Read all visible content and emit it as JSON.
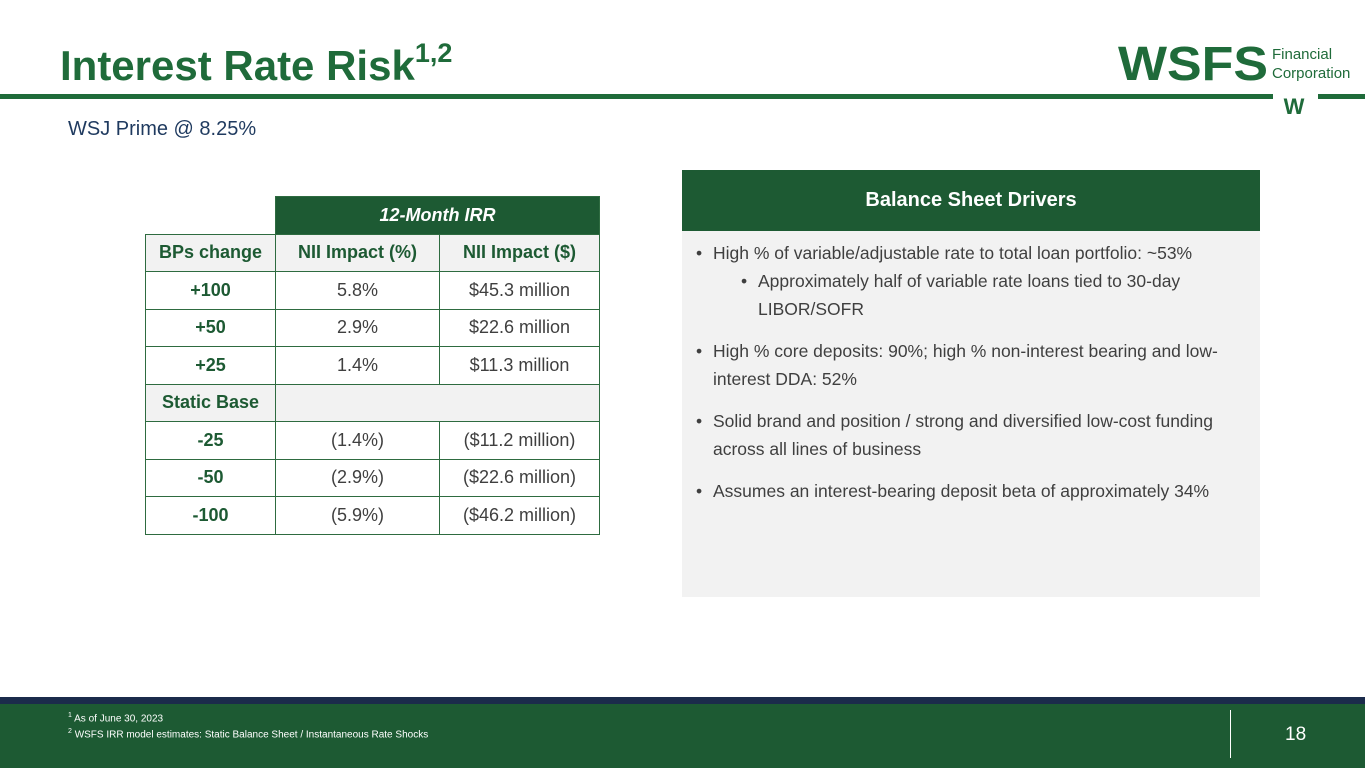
{
  "header": {
    "title": "Interest Rate Risk",
    "title_sup": "1,2",
    "subtitle": "WSJ Prime @ 8.25%"
  },
  "logo": {
    "mark": "WSFS",
    "line1": "Financial",
    "line2": "Corporation",
    "emblem": "W"
  },
  "table": {
    "group_header": "12-Month IRR",
    "columns": [
      "BPs change",
      "NII Impact (%)",
      "NII Impact ($)"
    ],
    "rows": [
      [
        "+100",
        "5.8%",
        "$45.3 million"
      ],
      [
        "+50",
        "2.9%",
        "$22.6 million"
      ],
      [
        "+25",
        "1.4%",
        "$11.3 million"
      ],
      [
        "Static Base"
      ],
      [
        "-25",
        "(1.4%)",
        "($11.2 million)"
      ],
      [
        "-50",
        "(2.9%)",
        "($22.6 million)"
      ],
      [
        "-100",
        "(5.9%)",
        "($46.2 million)"
      ]
    ]
  },
  "drivers": {
    "title": "Balance Sheet Drivers",
    "bullets": [
      {
        "text": "High % of variable/adjustable rate to total loan portfolio: ~53%",
        "sub": [
          "Approximately half of variable rate loans tied to 30-day LIBOR/SOFR"
        ]
      },
      {
        "text": "High % core deposits: 90%; high % non-interest bearing and low-interest DDA: 52%"
      },
      {
        "text": "Solid brand and position / strong and diversified low-cost funding across all lines of business"
      },
      {
        "text": "Assumes an interest-bearing deposit beta of approximately 34%"
      }
    ]
  },
  "footer": {
    "notes": [
      {
        "mark": "1",
        "text": "As of June 30, 2023"
      },
      {
        "mark": "2",
        "text": "WSFS IRR model estimates: Static Balance Sheet / Instantaneous Rate Shocks"
      }
    ],
    "page": "18"
  }
}
